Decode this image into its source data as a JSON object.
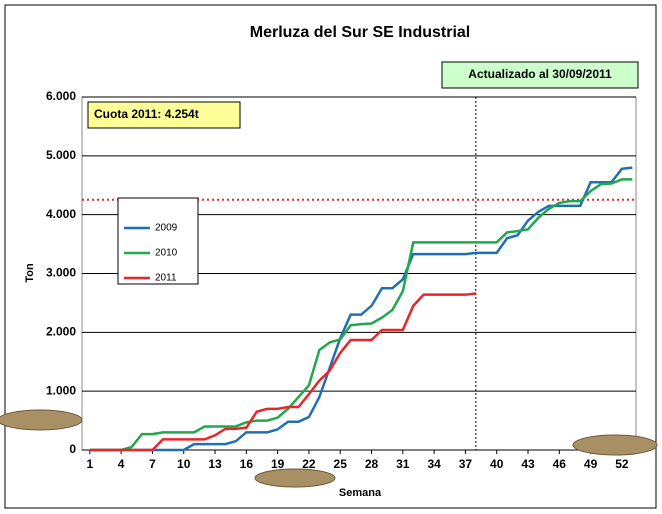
{
  "chart_data": {
    "type": "line",
    "title": "Merluza del Sur SE Industrial",
    "xlabel": "Semana",
    "ylabel": "Ton",
    "x": [
      1,
      2,
      3,
      4,
      5,
      6,
      7,
      8,
      9,
      10,
      11,
      12,
      13,
      14,
      15,
      16,
      17,
      18,
      19,
      20,
      21,
      22,
      23,
      24,
      25,
      26,
      27,
      28,
      29,
      30,
      31,
      32,
      33,
      34,
      35,
      36,
      37,
      38,
      39,
      40,
      41,
      42,
      43,
      44,
      45,
      46,
      47,
      48,
      49,
      50,
      51,
      52,
      53
    ],
    "xlim": [
      0.25,
      53.35
    ],
    "xticks": [
      1,
      4,
      7,
      10,
      13,
      16,
      19,
      22,
      25,
      28,
      31,
      34,
      37,
      40,
      43,
      46,
      49,
      52
    ],
    "ylim": [
      0,
      6000
    ],
    "yticks": [
      0,
      {
        "value": 1000,
        "label": "1.000"
      },
      {
        "value": 2000,
        "label": "2.000"
      },
      {
        "value": 3000,
        "label": "3.000"
      },
      {
        "value": 4000,
        "label": "4.000"
      },
      {
        "value": 5000,
        "label": "5.000"
      },
      {
        "value": 6000,
        "label": "6.000"
      }
    ],
    "grid": true,
    "legend": "left",
    "series": [
      {
        "name": "2009",
        "color": "#1f6fb5",
        "values": [
          0,
          0,
          0,
          0,
          0,
          0,
          0,
          0,
          0,
          0,
          100,
          100,
          100,
          100,
          150,
          300,
          300,
          300,
          350,
          480,
          480,
          560,
          900,
          1400,
          1900,
          2300,
          2300,
          2450,
          2750,
          2750,
          2900,
          3330,
          3330,
          3330,
          3330,
          3330,
          3330,
          3350,
          3350,
          3350,
          3600,
          3650,
          3900,
          4050,
          4150,
          4150,
          4150,
          4150,
          4550,
          4550,
          4550,
          4780,
          4800
        ]
      },
      {
        "name": "2010",
        "color": "#22a84a",
        "values": [
          0,
          0,
          0,
          0,
          50,
          270,
          270,
          300,
          300,
          300,
          300,
          400,
          400,
          400,
          400,
          470,
          500,
          500,
          550,
          700,
          900,
          1100,
          1700,
          1830,
          1880,
          2120,
          2140,
          2150,
          2250,
          2380,
          2700,
          3530,
          3530,
          3530,
          3530,
          3530,
          3530,
          3530,
          3530,
          3530,
          3700,
          3720,
          3750,
          3950,
          4100,
          4200,
          4230,
          4230,
          4400,
          4520,
          4530,
          4600,
          4600
        ]
      },
      {
        "name": "2011",
        "color": "#e8262a",
        "values": [
          0,
          0,
          0,
          0,
          0,
          0,
          0,
          180,
          180,
          180,
          180,
          180,
          250,
          360,
          360,
          380,
          650,
          700,
          700,
          730,
          730,
          950,
          1180,
          1350,
          1650,
          1870,
          1870,
          1870,
          2040,
          2040,
          2040,
          2450,
          2640,
          2640,
          2640,
          2640,
          2640,
          2660,
          null,
          null,
          null,
          null,
          null,
          null,
          null,
          null,
          null,
          null,
          null,
          null,
          null,
          null,
          null
        ]
      }
    ],
    "quota_line": {
      "value": 4254,
      "color": "#e8262a"
    },
    "update_line": {
      "x": 38
    },
    "annotations": [
      "Cuota 2011: 4.254t",
      "Actualizado al 30/09/2011"
    ]
  }
}
